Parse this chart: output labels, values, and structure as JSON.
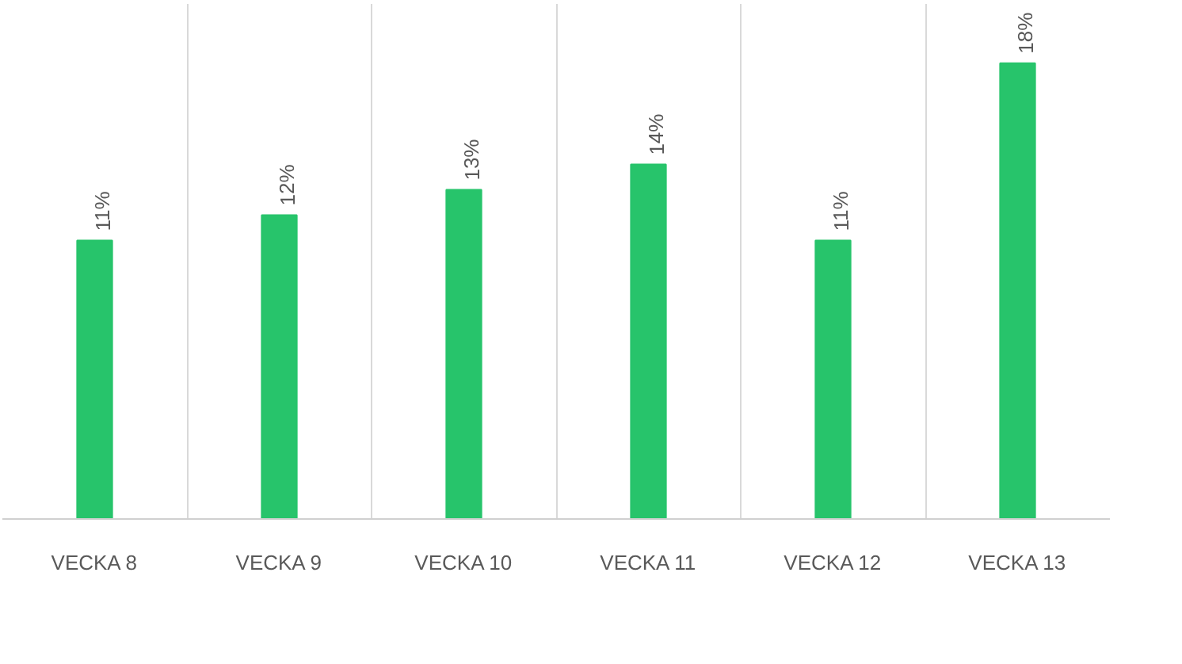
{
  "chart_data": {
    "type": "bar",
    "categories": [
      "VECKA 8",
      "VECKA 9",
      "VECKA 10",
      "VECKA 11",
      "VECKA 12",
      "VECKA 13"
    ],
    "values": [
      11,
      12,
      13,
      14,
      11,
      18
    ],
    "value_labels": [
      "11%",
      "12%",
      "13%",
      "14%",
      "11%",
      "18%"
    ],
    "color": "#27c46b",
    "grid": "x"
  }
}
